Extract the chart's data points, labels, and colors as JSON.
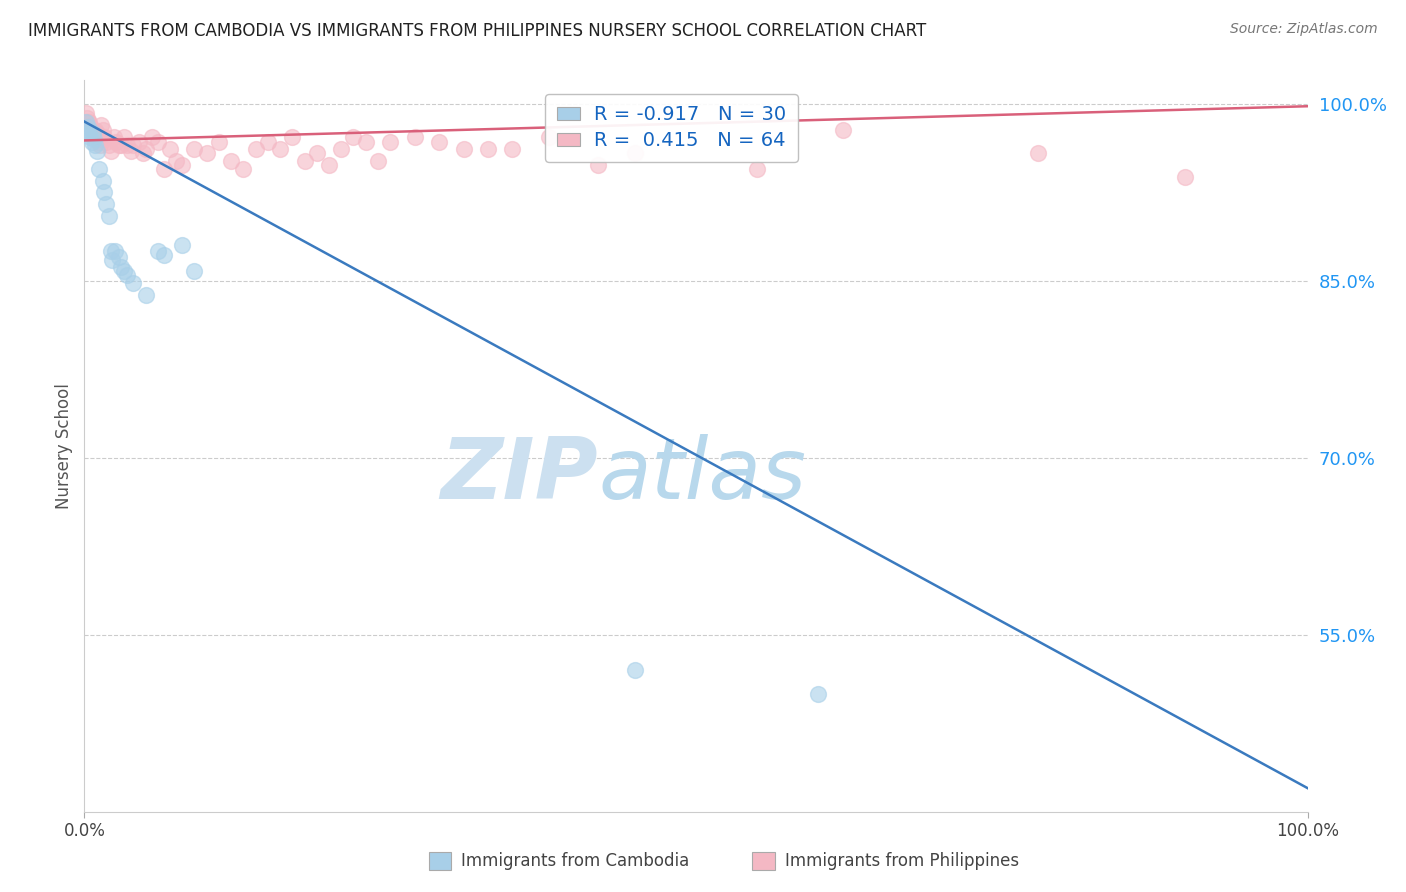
{
  "title": "IMMIGRANTS FROM CAMBODIA VS IMMIGRANTS FROM PHILIPPINES NURSERY SCHOOL CORRELATION CHART",
  "source": "Source: ZipAtlas.com",
  "ylabel": "Nursery School",
  "right_yticks": [
    55.0,
    70.0,
    85.0,
    100.0
  ],
  "Cambodia_R": -0.917,
  "Cambodia_N": 30,
  "Philippines_R": 0.415,
  "Philippines_N": 64,
  "Cambodia_color": "#a8cfe8",
  "Philippines_color": "#f4b8c4",
  "Cambodia_line_color": "#3a7abf",
  "Philippines_line_color": "#d9607a",
  "Cambodia_scatter": [
    [
      0.001,
      0.985
    ],
    [
      0.002,
      0.978
    ],
    [
      0.003,
      0.98
    ],
    [
      0.004,
      0.975
    ],
    [
      0.005,
      0.972
    ],
    [
      0.006,
      0.968
    ],
    [
      0.007,
      0.975
    ],
    [
      0.008,
      0.97
    ],
    [
      0.009,
      0.965
    ],
    [
      0.01,
      0.96
    ],
    [
      0.012,
      0.945
    ],
    [
      0.015,
      0.935
    ],
    [
      0.016,
      0.925
    ],
    [
      0.018,
      0.915
    ],
    [
      0.02,
      0.905
    ],
    [
      0.022,
      0.875
    ],
    [
      0.023,
      0.868
    ],
    [
      0.025,
      0.875
    ],
    [
      0.028,
      0.87
    ],
    [
      0.03,
      0.862
    ],
    [
      0.032,
      0.858
    ],
    [
      0.035,
      0.855
    ],
    [
      0.04,
      0.848
    ],
    [
      0.05,
      0.838
    ],
    [
      0.06,
      0.875
    ],
    [
      0.065,
      0.872
    ],
    [
      0.08,
      0.88
    ],
    [
      0.09,
      0.858
    ],
    [
      0.45,
      0.52
    ],
    [
      0.6,
      0.5
    ]
  ],
  "Philippines_scatter": [
    [
      0.001,
      0.992
    ],
    [
      0.002,
      0.988
    ],
    [
      0.003,
      0.985
    ],
    [
      0.004,
      0.985
    ],
    [
      0.005,
      0.98
    ],
    [
      0.006,
      0.978
    ],
    [
      0.007,
      0.975
    ],
    [
      0.008,
      0.972
    ],
    [
      0.009,
      0.978
    ],
    [
      0.01,
      0.975
    ],
    [
      0.011,
      0.97
    ],
    [
      0.012,
      0.968
    ],
    [
      0.013,
      0.965
    ],
    [
      0.014,
      0.982
    ],
    [
      0.015,
      0.978
    ],
    [
      0.016,
      0.972
    ],
    [
      0.018,
      0.968
    ],
    [
      0.02,
      0.965
    ],
    [
      0.022,
      0.96
    ],
    [
      0.024,
      0.972
    ],
    [
      0.026,
      0.968
    ],
    [
      0.028,
      0.965
    ],
    [
      0.03,
      0.965
    ],
    [
      0.032,
      0.972
    ],
    [
      0.035,
      0.965
    ],
    [
      0.038,
      0.96
    ],
    [
      0.04,
      0.965
    ],
    [
      0.045,
      0.968
    ],
    [
      0.048,
      0.958
    ],
    [
      0.05,
      0.962
    ],
    [
      0.055,
      0.972
    ],
    [
      0.06,
      0.968
    ],
    [
      0.065,
      0.945
    ],
    [
      0.07,
      0.962
    ],
    [
      0.075,
      0.952
    ],
    [
      0.08,
      0.948
    ],
    [
      0.09,
      0.962
    ],
    [
      0.1,
      0.958
    ],
    [
      0.11,
      0.968
    ],
    [
      0.12,
      0.952
    ],
    [
      0.13,
      0.945
    ],
    [
      0.14,
      0.962
    ],
    [
      0.15,
      0.968
    ],
    [
      0.16,
      0.962
    ],
    [
      0.17,
      0.972
    ],
    [
      0.18,
      0.952
    ],
    [
      0.19,
      0.958
    ],
    [
      0.2,
      0.948
    ],
    [
      0.21,
      0.962
    ],
    [
      0.22,
      0.972
    ],
    [
      0.23,
      0.968
    ],
    [
      0.24,
      0.952
    ],
    [
      0.25,
      0.968
    ],
    [
      0.27,
      0.972
    ],
    [
      0.29,
      0.968
    ],
    [
      0.31,
      0.962
    ],
    [
      0.33,
      0.962
    ],
    [
      0.35,
      0.962
    ],
    [
      0.38,
      0.972
    ],
    [
      0.42,
      0.948
    ],
    [
      0.45,
      0.958
    ],
    [
      0.55,
      0.945
    ],
    [
      0.62,
      0.978
    ],
    [
      0.78,
      0.958
    ],
    [
      0.9,
      0.938
    ]
  ],
  "xlim": [
    0.0,
    1.0
  ],
  "ylim": [
    0.4,
    1.02
  ],
  "ytick_positions": [
    0.55,
    0.7,
    0.85,
    1.0
  ],
  "grid_color": "#cccccc",
  "background_color": "#ffffff",
  "watermark_zip": "ZIP",
  "watermark_atlas": "atlas",
  "watermark_color_zip": "#cce0f0",
  "watermark_color_atlas": "#b8d8ec"
}
